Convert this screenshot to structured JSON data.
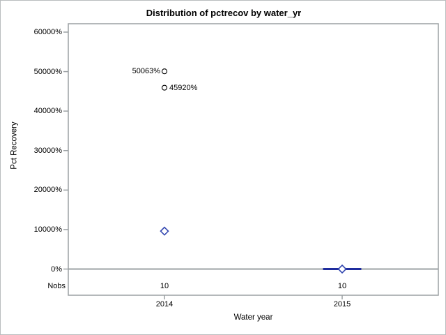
{
  "chart_data": {
    "type": "box",
    "title": "Distribution of pctrecov by water_yr",
    "xlabel": "Water year",
    "ylabel": "Pct Recovery",
    "nobs_label": "Nobs",
    "ylim": [
      0,
      62000
    ],
    "yticks": [
      0,
      10000,
      20000,
      30000,
      40000,
      50000,
      60000
    ],
    "ytick_suffix": "%",
    "grid": "off",
    "legend": "none",
    "categories": [
      "2014",
      "2015"
    ],
    "groups": [
      {
        "category": "2014",
        "nobs": "10",
        "mean": 9600,
        "box": null,
        "outliers": [
          {
            "value": 50063,
            "label": "50063%",
            "label_side": "left"
          },
          {
            "value": 45920,
            "label": "45920%",
            "label_side": "right"
          }
        ]
      },
      {
        "category": "2015",
        "nobs": "10",
        "mean": 0,
        "box": {
          "low": 0,
          "high": 0,
          "median": 0
        },
        "outliers": []
      }
    ],
    "colors": {
      "mean_marker_blue": "#3347b0",
      "box_navy": "#1f2d9e",
      "axis_gray": "#9ba0a3",
      "outlier_stroke": "#000000",
      "text": "#000000",
      "background": "#ffffff"
    }
  }
}
